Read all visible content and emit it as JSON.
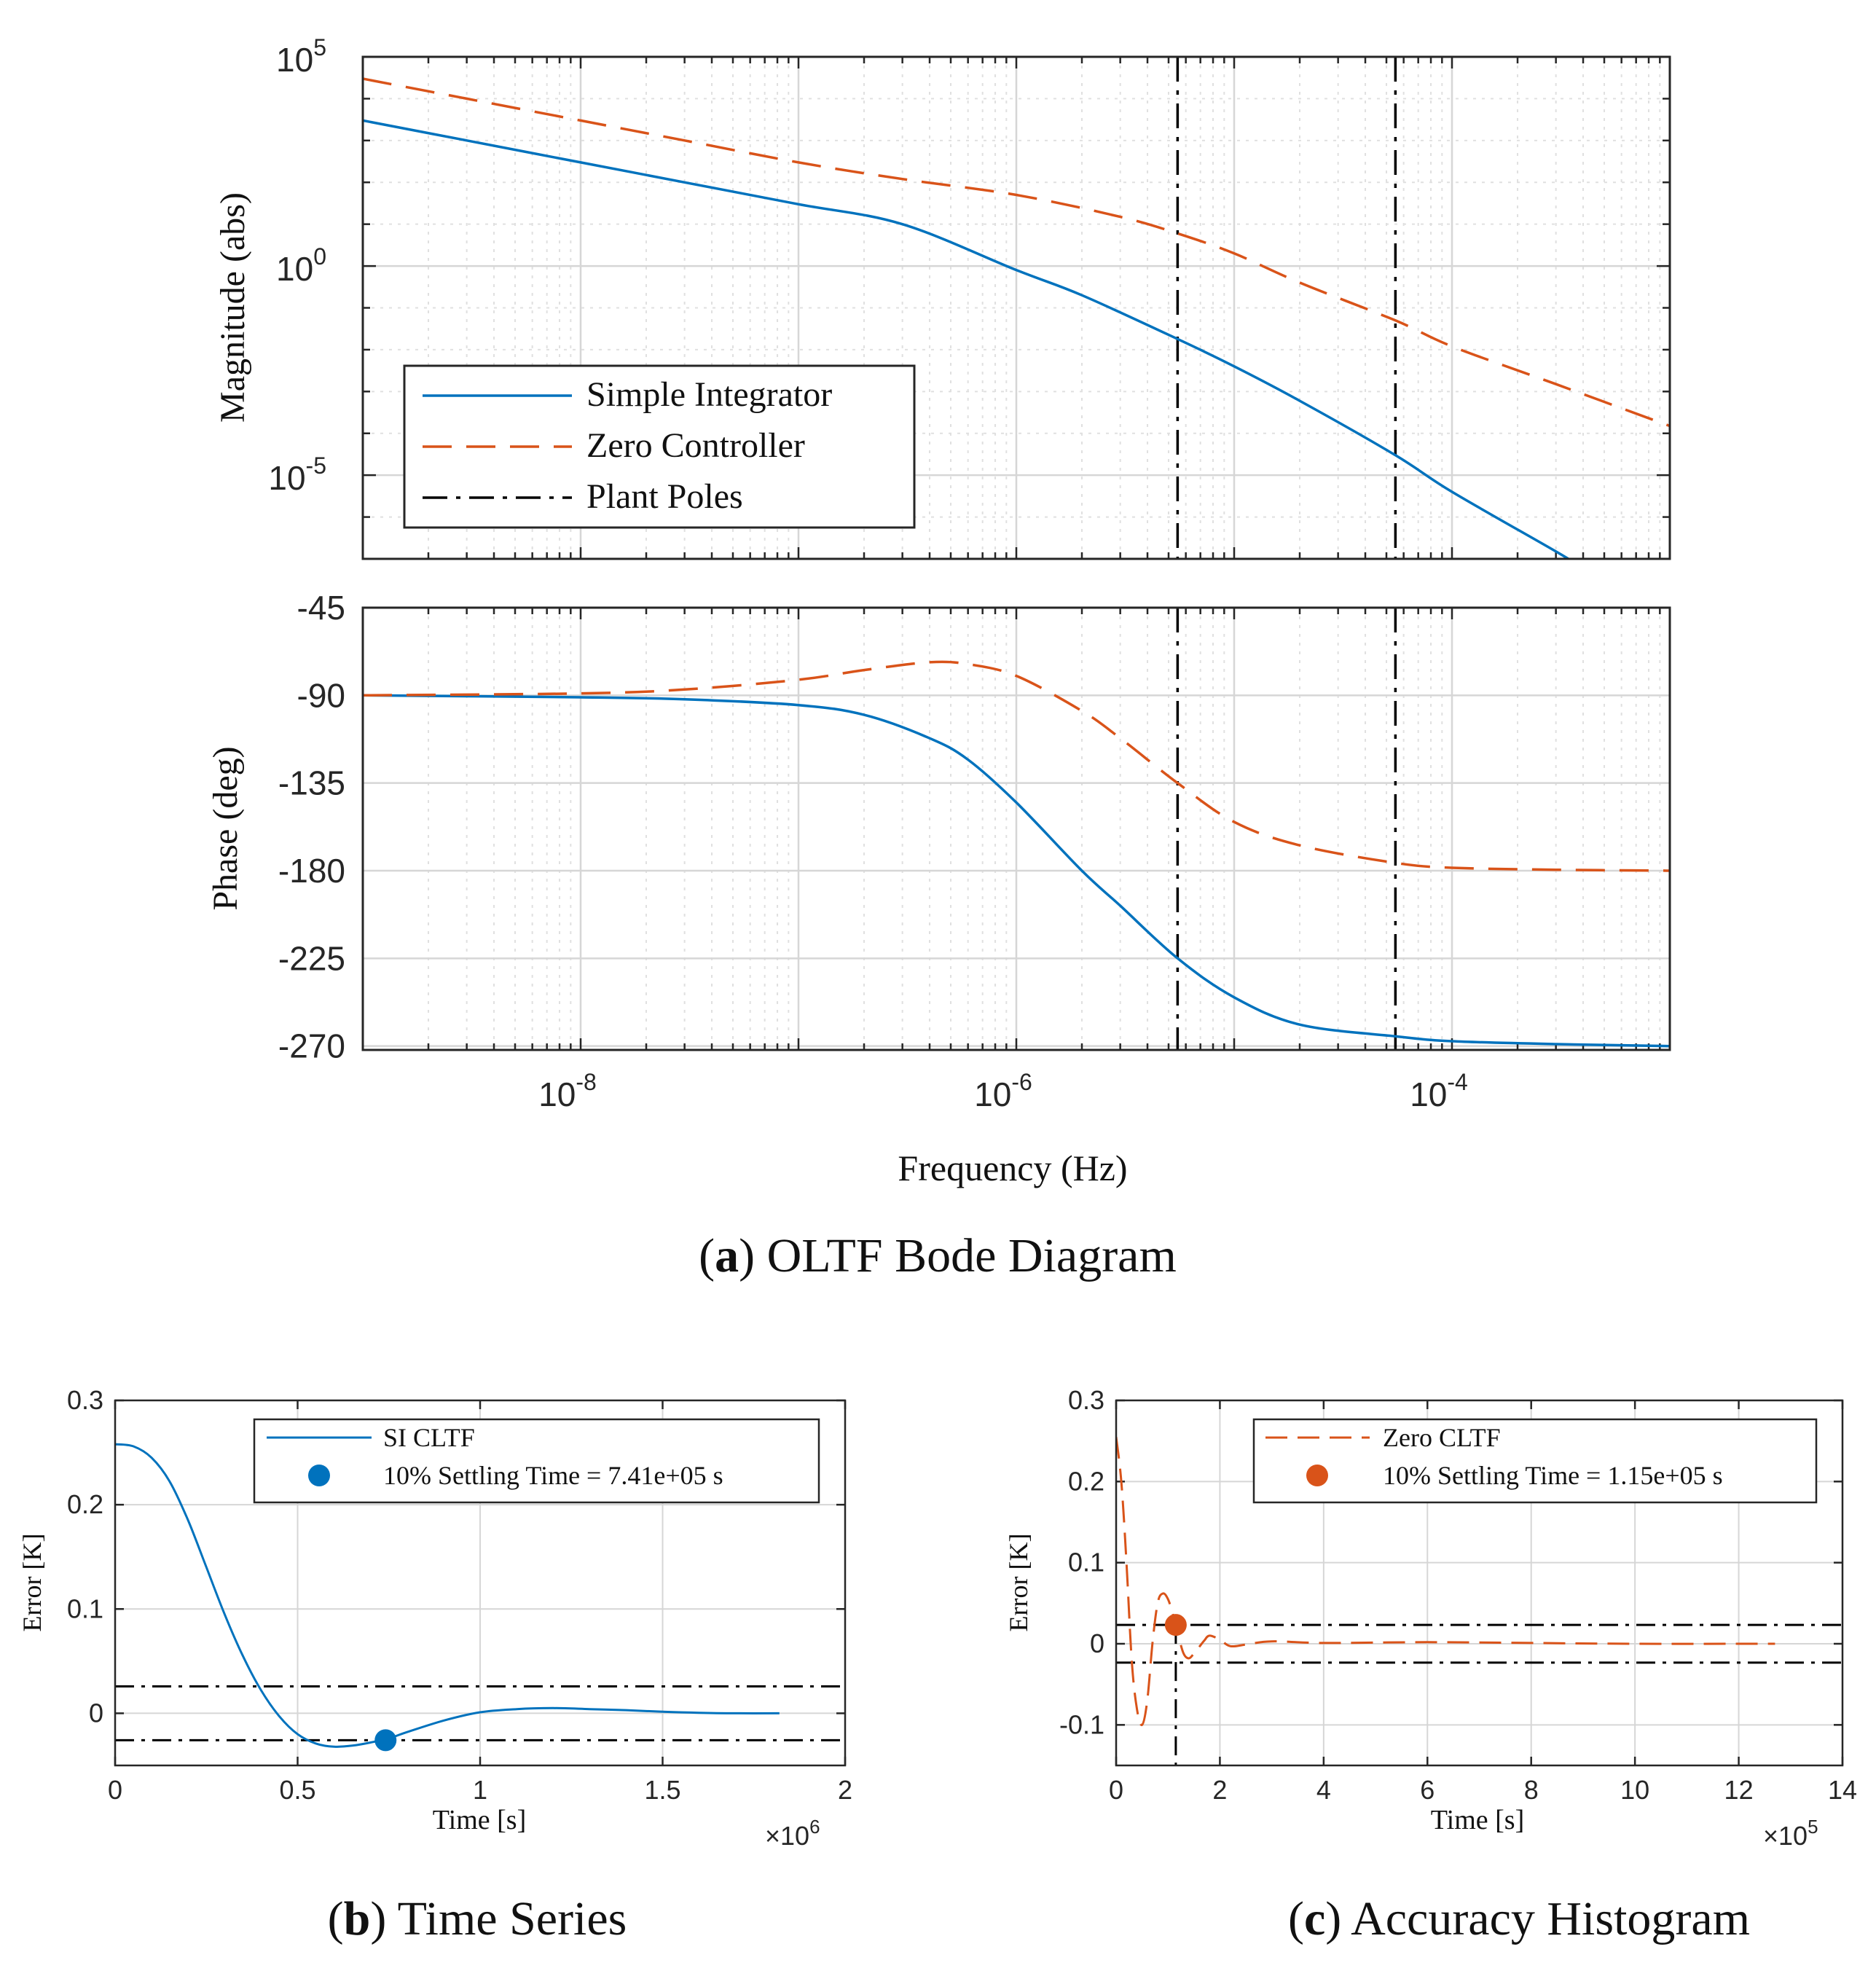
{
  "chart_data": [
    {
      "id": "bode",
      "type": "line",
      "caption_letter": "a",
      "caption_text": "OLTF Bode Diagram",
      "xlabel": "Frequency (Hz)",
      "x_ticks": [
        "10^-8",
        "10^-6",
        "10^-4"
      ],
      "x_tick_values": [
        1e-08,
        1e-06,
        0.0001
      ],
      "xlim": [
        1e-09,
        0.001
      ],
      "xscale": "log",
      "grid": true,
      "legend": {
        "placement": "lower-left of magnitude panel",
        "entries": [
          {
            "label": "Simple Integrator",
            "color": "#0072bd",
            "style": "solid"
          },
          {
            "label": "Zero Controller",
            "color": "#d95319",
            "style": "dashed"
          },
          {
            "label": "Plant Poles",
            "color": "#000000",
            "style": "dash-dot"
          }
        ]
      },
      "plant_poles": [
        5.5e-06,
        5.5e-05
      ],
      "magnitude": {
        "ylabel": "Magnitude (abs)",
        "yscale": "log",
        "ylim": [
          1e-07,
          100000.0
        ],
        "y_ticks": [
          "10^5",
          "10^0",
          "10^-5"
        ],
        "y_tick_values": [
          100000.0,
          1,
          1e-05
        ],
        "series": [
          {
            "name": "Simple Integrator",
            "x": [
              1e-09,
              3e-09,
              1e-08,
              3e-08,
              1e-07,
              3e-07,
              1e-06,
              2e-06,
              5.5e-06,
              1e-05,
              2e-05,
              5.5e-05,
              0.0001,
              0.0003,
              0.0004
            ],
            "y": [
              3000,
              1000,
              300,
              100,
              30,
              10,
              0.8,
              0.2,
              0.018,
              0.004,
              0.0006,
              3e-05,
              4e-06,
              1.5e-07,
              6e-08
            ]
          },
          {
            "name": "Zero Controller",
            "x": [
              1e-09,
              3e-09,
              1e-08,
              3e-08,
              1e-07,
              3e-07,
              1e-06,
              3e-06,
              5.5e-06,
              1e-05,
              2e-05,
              5.5e-05,
              0.0001,
              0.0003,
              0.001
            ],
            "y": [
              30000,
              10000,
              3000,
              1000,
              300,
              120,
              50,
              15,
              6,
              2,
              0.4,
              0.05,
              0.012,
              0.0015,
              0.00015
            ]
          }
        ]
      },
      "phase": {
        "ylabel": "Phase (deg)",
        "ylim": [
          -272,
          -45
        ],
        "y_ticks": [
          "-45",
          "-90",
          "-135",
          "-180",
          "-225",
          "-270"
        ],
        "y_tick_values": [
          -45,
          -90,
          -135,
          -180,
          -225,
          -270
        ],
        "series": [
          {
            "name": "Simple Integrator",
            "x": [
              1e-09,
              1e-08,
              3e-08,
              1e-07,
              2e-07,
              4e-07,
              6e-07,
              1e-06,
              2e-06,
              3e-06,
              5.5e-06,
              1e-05,
              2e-05,
              5.5e-05,
              0.0001,
              0.0003,
              0.001
            ],
            "y": [
              -90,
              -91,
              -92,
              -95,
              -100,
              -112,
              -123,
              -145,
              -180,
              -198,
              -225,
              -245,
              -259,
              -265,
              -267.5,
              -269,
              -270
            ]
          },
          {
            "name": "Zero Controller",
            "x": [
              1e-09,
              1e-08,
              3e-08,
              1e-07,
              2e-07,
              4e-07,
              6e-07,
              1e-06,
              2e-06,
              3e-06,
              5.5e-06,
              1e-05,
              2e-05,
              5.5e-05,
              0.0001,
              0.0003,
              0.001
            ],
            "y": [
              -90,
              -89,
              -87,
              -82,
              -77,
              -73,
              -74,
              -80,
              -98,
              -112,
              -135,
              -155,
              -167,
              -176,
              -178.5,
              -179.5,
              -180
            ]
          }
        ]
      }
    },
    {
      "id": "time-series",
      "type": "line",
      "caption_letter": "b",
      "caption_text": "Time Series",
      "xlabel": "Time [s]",
      "ylabel": "Error [K]",
      "x_multiplier": "×10",
      "x_multiplier_exp": "6",
      "xlim": [
        0,
        2
      ],
      "ylim": [
        -0.05,
        0.3
      ],
      "x_ticks": [
        "0",
        "0.5",
        "1",
        "1.5",
        "2"
      ],
      "x_tick_values": [
        0,
        0.5,
        1,
        1.5,
        2
      ],
      "y_ticks": [
        "0.3",
        "0.2",
        "0.1",
        "0"
      ],
      "y_tick_values": [
        0.3,
        0.2,
        0.1,
        0
      ],
      "grid": true,
      "thresholds": [
        0.0258,
        -0.0258
      ],
      "legend": {
        "placement": "top-right",
        "entries": [
          {
            "label": "SI CLTF",
            "color": "#0072bd",
            "style": "solid"
          },
          {
            "label": "10% Settling Time = 7.41e+05 s",
            "color": "#0072bd",
            "style": "marker"
          }
        ]
      },
      "marker": {
        "x": 0.741,
        "y": -0.0258,
        "color": "#0072bd"
      },
      "series": [
        {
          "name": "SI CLTF",
          "x": [
            0,
            0.05,
            0.1,
            0.15,
            0.2,
            0.25,
            0.3,
            0.35,
            0.4,
            0.45,
            0.5,
            0.55,
            0.6,
            0.65,
            0.7,
            0.75,
            0.8,
            0.9,
            1.0,
            1.1,
            1.2,
            1.3,
            1.4,
            1.5,
            1.6,
            1.7,
            1.82
          ],
          "y": [
            0.258,
            0.256,
            0.245,
            0.222,
            0.185,
            0.14,
            0.095,
            0.055,
            0.022,
            -0.003,
            -0.02,
            -0.029,
            -0.032,
            -0.031,
            -0.028,
            -0.024,
            -0.018,
            -0.007,
            0.001,
            0.004,
            0.005,
            0.004,
            0.003,
            0.0015,
            0.0005,
            0.0,
            0.0
          ]
        }
      ]
    },
    {
      "id": "accuracy-histogram",
      "type": "line",
      "caption_letter": "c",
      "caption_text": "Accuracy Histogram",
      "xlabel": "Time [s]",
      "ylabel": "Error [K]",
      "x_multiplier": "×10",
      "x_multiplier_exp": "5",
      "xlim": [
        0,
        14
      ],
      "ylim": [
        -0.15,
        0.3
      ],
      "x_ticks": [
        "0",
        "2",
        "4",
        "6",
        "8",
        "10",
        "12",
        "14"
      ],
      "x_tick_values": [
        0,
        2,
        4,
        6,
        8,
        10,
        12,
        14
      ],
      "y_ticks": [
        "0.3",
        "0.2",
        "0.1",
        "0",
        "-0.1"
      ],
      "y_tick_values": [
        0.3,
        0.2,
        0.1,
        0,
        -0.1
      ],
      "grid": true,
      "thresholds": [
        0.0232,
        -0.0232
      ],
      "settling_time": 1.15,
      "legend": {
        "placement": "top-right",
        "entries": [
          {
            "label": "Zero CLTF",
            "color": "#d95319",
            "style": "dashed"
          },
          {
            "label": "10% Settling Time = 1.15e+05 s",
            "color": "#d95319",
            "style": "marker"
          }
        ]
      },
      "marker": {
        "x": 1.15,
        "y": 0.0232,
        "color": "#d95319"
      },
      "series": [
        {
          "name": "Zero CLTF",
          "x": [
            0,
            0.1,
            0.2,
            0.3,
            0.4,
            0.5,
            0.6,
            0.7,
            0.8,
            0.9,
            1.0,
            1.1,
            1.2,
            1.3,
            1.4,
            1.5,
            1.6,
            1.7,
            1.8,
            2.0,
            2.2,
            2.5,
            3.0,
            4.0,
            6.0,
            8.0,
            10.0,
            12.7
          ],
          "y": [
            0.255,
            0.2,
            0.1,
            -0.02,
            -0.08,
            -0.1,
            -0.07,
            0.0,
            0.05,
            0.062,
            0.055,
            0.035,
            0.01,
            -0.012,
            -0.018,
            -0.012,
            -0.004,
            0.004,
            0.01,
            0.005,
            -0.003,
            -0.001,
            0.003,
            0.001,
            0.002,
            0.001,
            0.0,
            0.0
          ]
        }
      ]
    }
  ]
}
